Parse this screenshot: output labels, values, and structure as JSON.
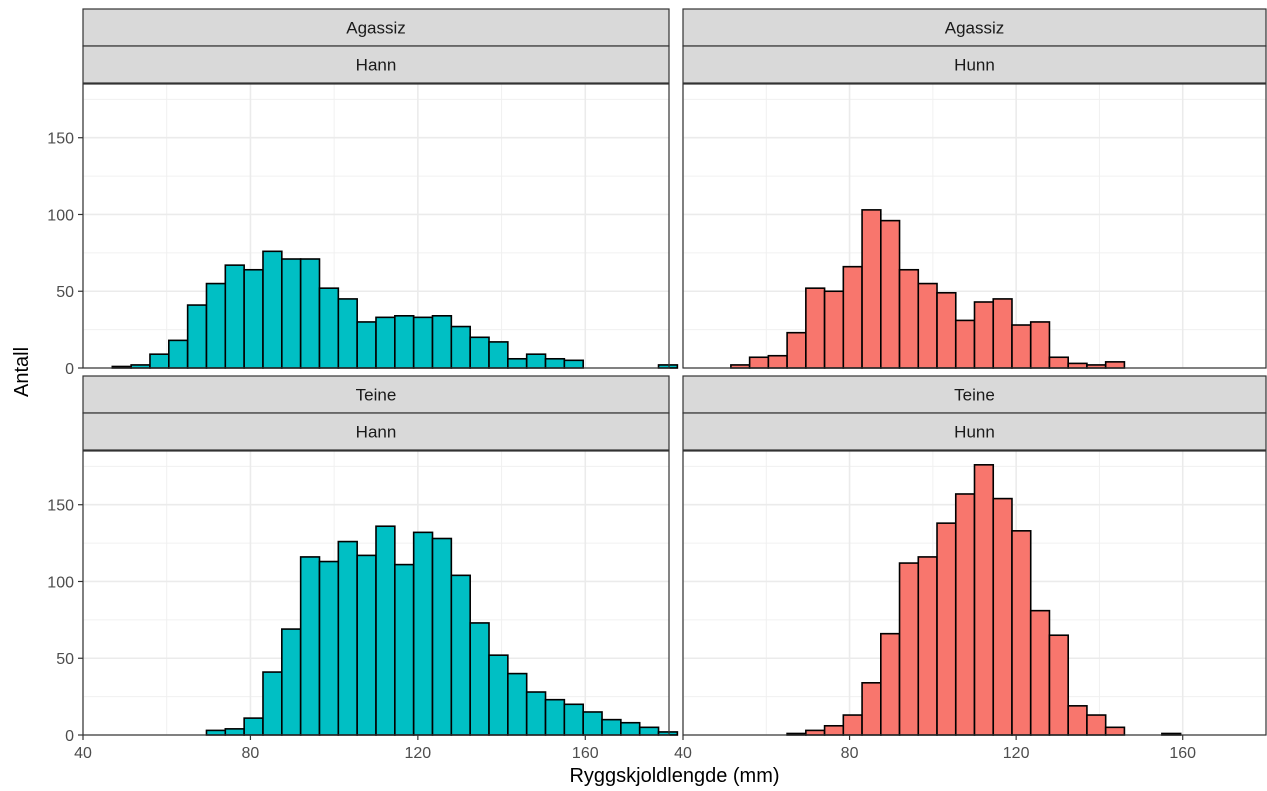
{
  "chart_data": {
    "type": "bar",
    "xlabel": "Ryggskjoldlengde (mm)",
    "ylabel": "Antall",
    "xlim": [
      40,
      180
    ],
    "ylim": [
      0,
      185
    ],
    "x_ticks": [
      40,
      80,
      120,
      160
    ],
    "y_ticks": [
      0,
      50,
      100,
      150
    ],
    "bin_start": 47,
    "bin_width": 4.5,
    "grid": true,
    "colors": {
      "Hann": "#00BFC4",
      "Hunn": "#F8766D"
    },
    "panels": [
      {
        "row": "Agassiz",
        "col": "Hann",
        "counts": [
          1,
          2,
          9,
          18,
          41,
          55,
          67,
          64,
          76,
          71,
          71,
          52,
          45,
          30,
          33,
          34,
          33,
          34,
          27,
          20,
          17,
          6,
          9,
          6,
          5,
          0,
          0,
          0,
          0,
          2
        ]
      },
      {
        "row": "Agassiz",
        "col": "Hunn",
        "counts": [
          0,
          2,
          7,
          8,
          23,
          52,
          50,
          66,
          103,
          96,
          64,
          55,
          49,
          31,
          43,
          45,
          28,
          30,
          7,
          3,
          2,
          4,
          0,
          0,
          0,
          0,
          0,
          0,
          0,
          0
        ]
      },
      {
        "row": "Teine",
        "col": "Hann",
        "counts": [
          0,
          0,
          0,
          0,
          0,
          3,
          4,
          11,
          41,
          69,
          116,
          113,
          126,
          117,
          136,
          111,
          132,
          128,
          104,
          73,
          52,
          40,
          28,
          23,
          20,
          15,
          10,
          8,
          5,
          2
        ]
      },
      {
        "row": "Teine",
        "col": "Hunn",
        "counts": [
          0,
          0,
          0,
          0,
          1,
          3,
          6,
          13,
          34,
          66,
          112,
          116,
          138,
          157,
          176,
          154,
          133,
          81,
          65,
          19,
          13,
          5,
          0,
          0,
          1,
          0,
          0,
          0,
          0,
          0
        ]
      }
    ]
  }
}
